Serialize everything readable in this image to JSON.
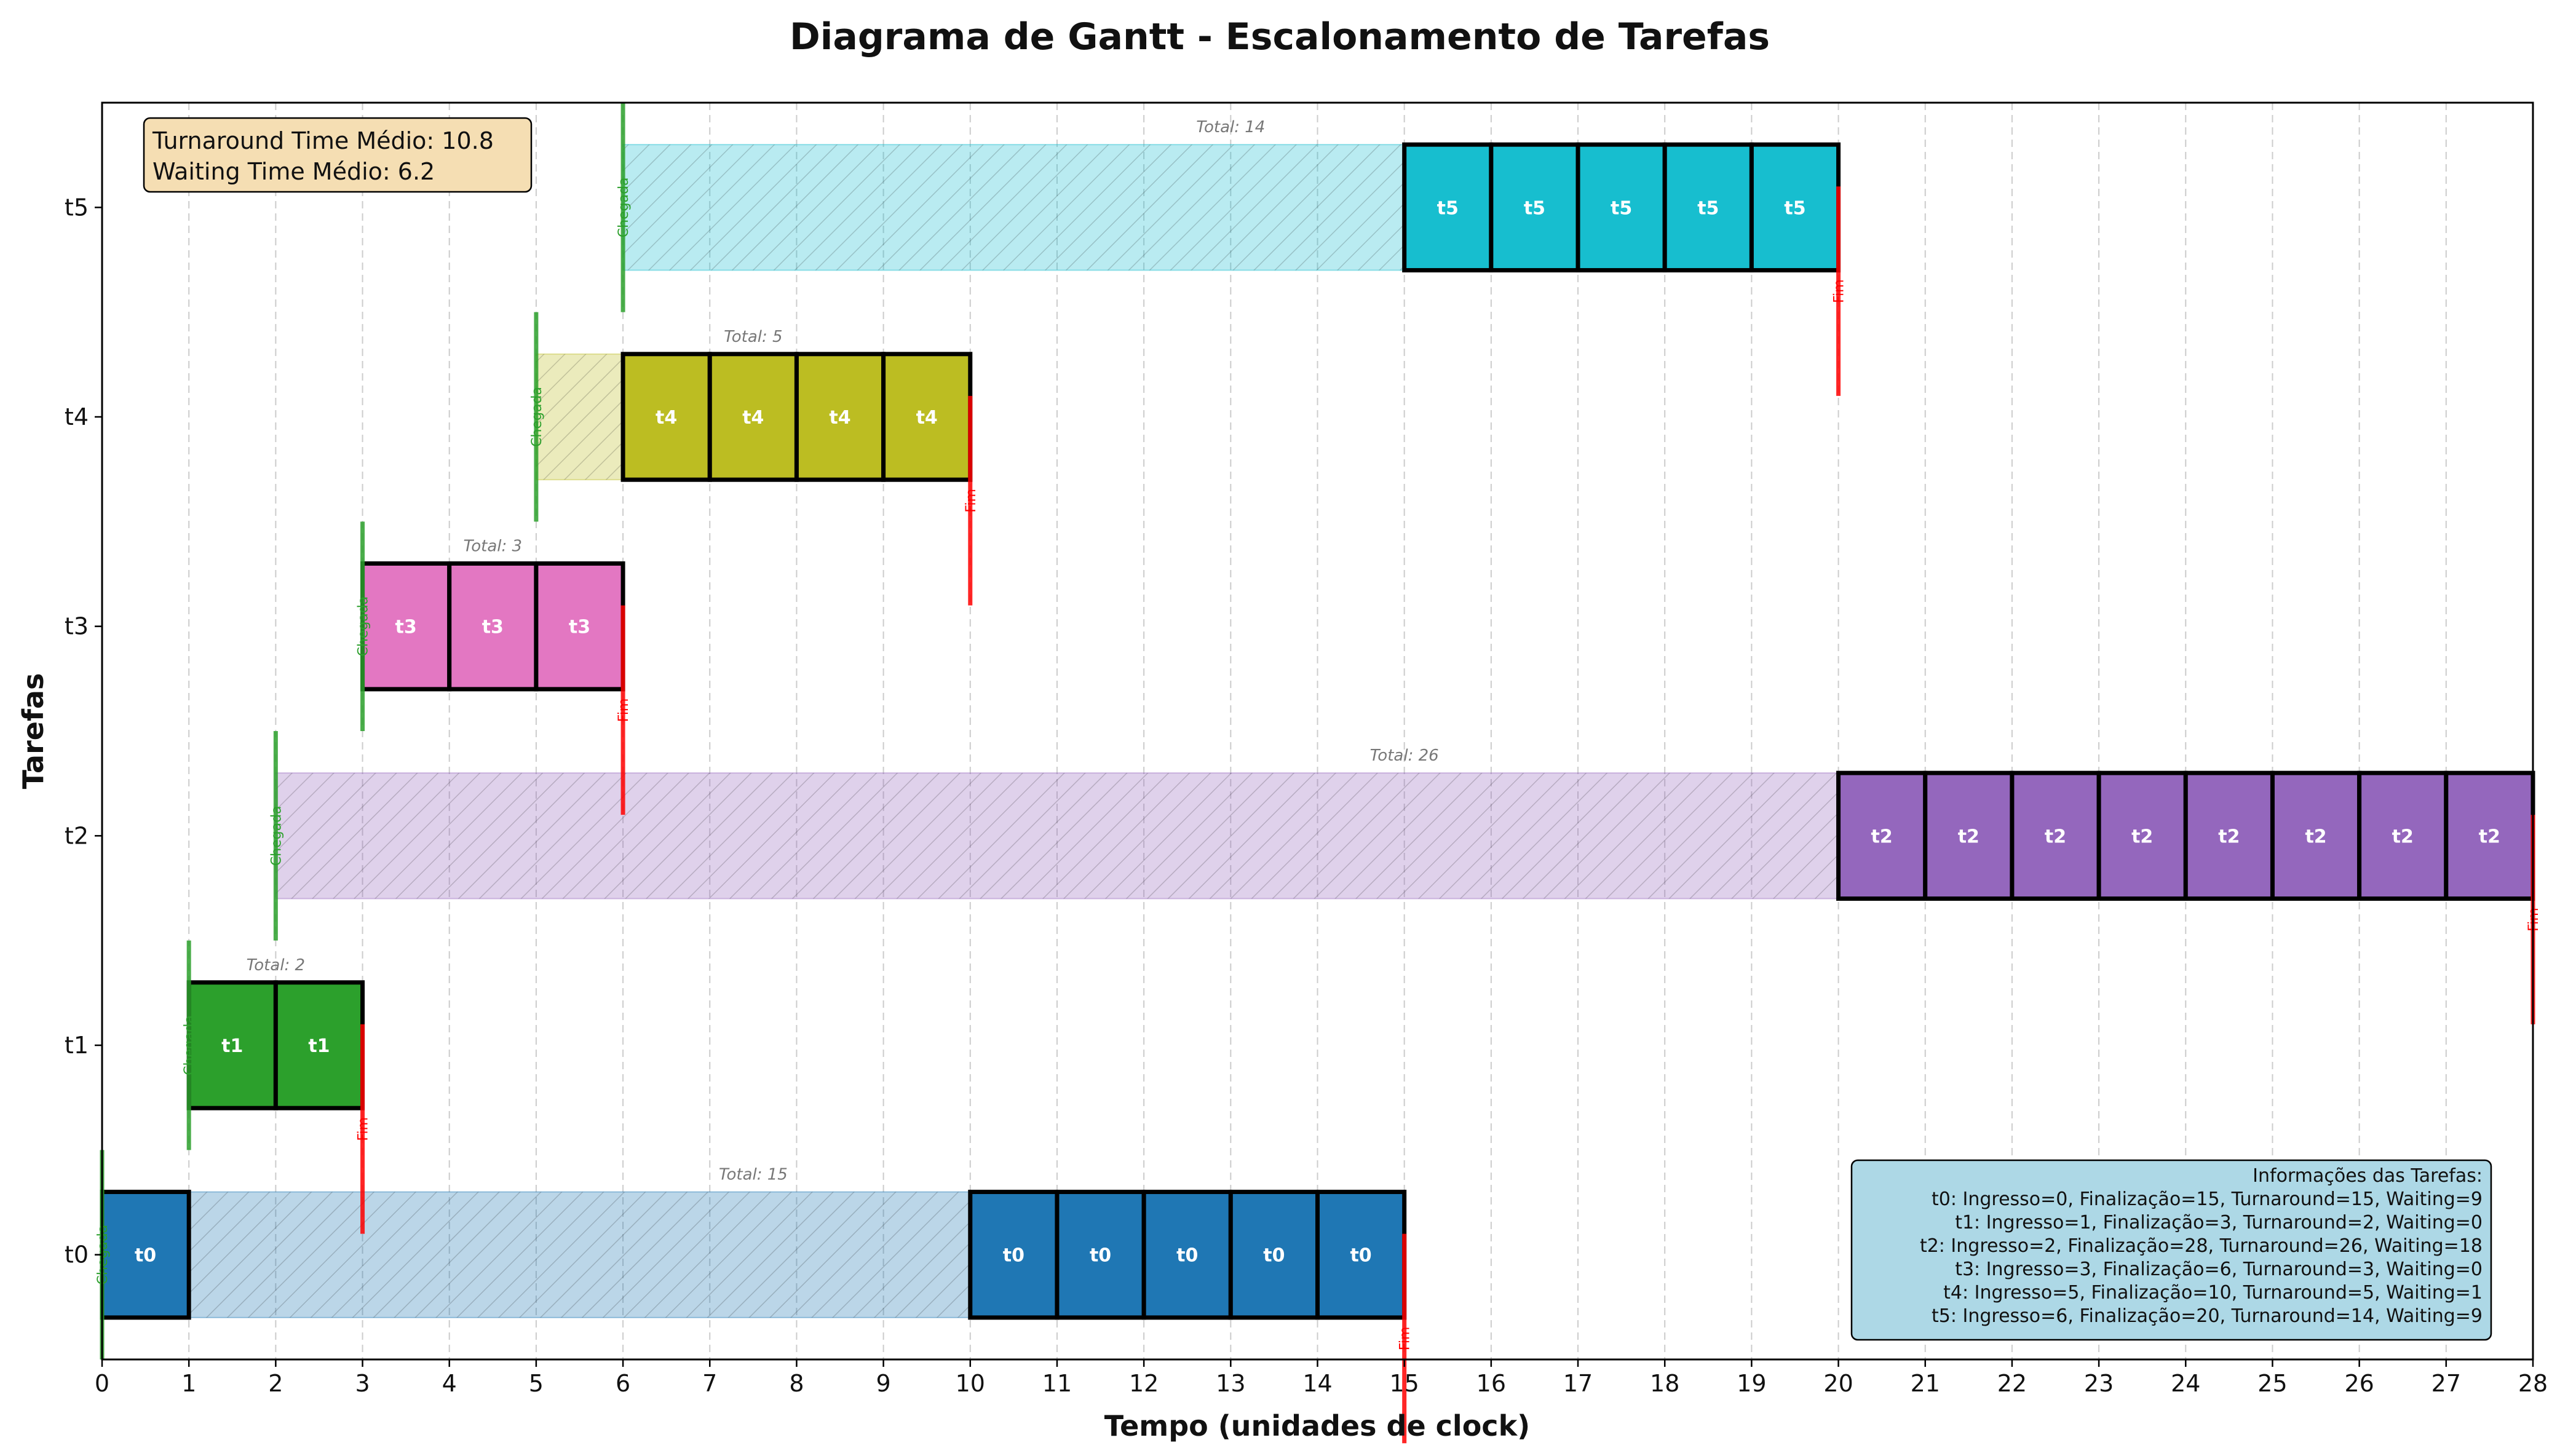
{
  "chart_data": {
    "type": "gantt",
    "title": "Diagrama de Gantt - Escalonamento de Tarefas",
    "xlabel": "Tempo (unidades de clock)",
    "ylabel": "Tarefas",
    "xlim": [
      0,
      28
    ],
    "x_ticks": [
      "0",
      "1",
      "2",
      "3",
      "4",
      "5",
      "6",
      "7",
      "8",
      "9",
      "10",
      "11",
      "12",
      "13",
      "14",
      "15",
      "16",
      "17",
      "18",
      "19",
      "20",
      "21",
      "22",
      "23",
      "24",
      "25",
      "26",
      "27",
      "28"
    ],
    "grid": "vertical-dashed",
    "arrival_label": "Chegada",
    "end_label": "Fim",
    "tasks": [
      {
        "name": "t0",
        "color": "#1f77b4",
        "arrival": 0,
        "finish": 15,
        "total_label": "Total: 15",
        "execution": [
          [
            0,
            1
          ],
          [
            10,
            11
          ],
          [
            11,
            12
          ],
          [
            12,
            13
          ],
          [
            13,
            14
          ],
          [
            14,
            15
          ]
        ]
      },
      {
        "name": "t1",
        "color": "#2ca02c",
        "arrival": 1,
        "finish": 3,
        "total_label": "Total: 2",
        "execution": [
          [
            1,
            2
          ],
          [
            2,
            3
          ]
        ]
      },
      {
        "name": "t2",
        "color": "#9467bd",
        "arrival": 2,
        "finish": 28,
        "total_label": "Total: 26",
        "execution": [
          [
            20,
            21
          ],
          [
            21,
            22
          ],
          [
            22,
            23
          ],
          [
            23,
            24
          ],
          [
            24,
            25
          ],
          [
            25,
            26
          ],
          [
            26,
            27
          ],
          [
            27,
            28
          ]
        ]
      },
      {
        "name": "t3",
        "color": "#e377c2",
        "arrival": 3,
        "finish": 6,
        "total_label": "Total: 3",
        "execution": [
          [
            3,
            4
          ],
          [
            4,
            5
          ],
          [
            5,
            6
          ]
        ]
      },
      {
        "name": "t4",
        "color": "#bcbd22",
        "arrival": 5,
        "finish": 10,
        "total_label": "Total: 5",
        "execution": [
          [
            6,
            7
          ],
          [
            7,
            8
          ],
          [
            8,
            9
          ],
          [
            9,
            10
          ]
        ]
      },
      {
        "name": "t5",
        "color": "#17becf",
        "arrival": 6,
        "finish": 20,
        "total_label": "Total: 14",
        "execution": [
          [
            15,
            16
          ],
          [
            16,
            17
          ],
          [
            17,
            18
          ],
          [
            18,
            19
          ],
          [
            19,
            20
          ]
        ]
      }
    ],
    "stats": {
      "turnaround": "Turnaround Time Médio: 10.8",
      "waiting": "Waiting Time Médio: 6.2"
    },
    "info_box": {
      "title": "Informações das Tarefas:",
      "lines": [
        "t0: Ingresso=0, Finalização=15, Turnaround=15, Waiting=9",
        "t1: Ingresso=1, Finalização=3, Turnaround=2, Waiting=0",
        "t2: Ingresso=2, Finalização=28, Turnaround=26, Waiting=18",
        "t3: Ingresso=3, Finalização=6, Turnaround=3, Waiting=0",
        "t4: Ingresso=5, Finalização=10, Turnaround=5, Waiting=1",
        "t5: Ingresso=6, Finalização=20, Turnaround=14, Waiting=9"
      ]
    },
    "colors": {
      "arrival": "#2ca02c",
      "end": "#ff0000",
      "stats_bg": "#f5deb3",
      "info_bg": "#add8e6"
    }
  }
}
